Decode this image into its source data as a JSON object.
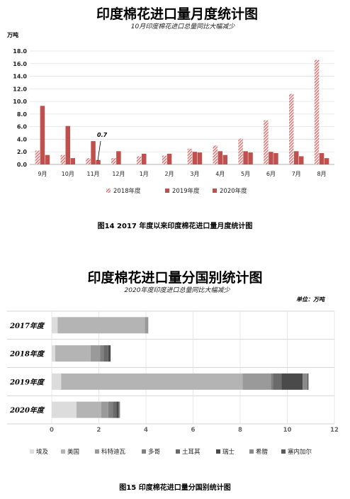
{
  "chart1": {
    "title": "印度棉花进口量月度统计图",
    "subtitle": "10月印度棉花进口总量同比大幅减少",
    "unit": "万吨",
    "caption": "图14    2017 年度以来印度棉花进口量月度统计图",
    "annotation": "0.7",
    "yticks": [
      "0.0",
      "2.0",
      "4.0",
      "6.0",
      "8.0",
      "10.0",
      "12.0",
      "14.0",
      "16.0",
      "18.0"
    ]
  },
  "chart2": {
    "title": "印度棉花进口量分国别统计图",
    "subtitle": "2020年度印度进口总量同比大幅减少",
    "unit": "单位：万吨",
    "caption": "图15    印度棉花进口量分国别统计图",
    "xticks": [
      "0",
      "2",
      "4",
      "6",
      "8",
      "10",
      "12"
    ]
  },
  "chart_data": [
    {
      "type": "bar",
      "title": "印度棉花进口量月度统计图",
      "subtitle": "10月印度棉花进口总量同比大幅减少",
      "ylabel": "万吨",
      "ylim": [
        0,
        18
      ],
      "categories": [
        "9月",
        "10月",
        "11月",
        "12月",
        "1月",
        "2月",
        "3月",
        "4月",
        "5月",
        "6月",
        "7月",
        "8月"
      ],
      "series": [
        {
          "name": "2018年度",
          "values": [
            2.2,
            1.5,
            1.0,
            1.0,
            1.3,
            1.4,
            2.5,
            3.0,
            4.1,
            7.0,
            11.2,
            16.6
          ]
        },
        {
          "name": "2019年度",
          "values": [
            9.3,
            6.1,
            3.7,
            2.1,
            1.7,
            1.7,
            2.0,
            2.1,
            2.1,
            2.0,
            2.1,
            1.8
          ]
        },
        {
          "name": "2020年度",
          "values": [
            1.5,
            1.0,
            0.7,
            null,
            null,
            null,
            1.9,
            1.5,
            1.9,
            1.8,
            1.3,
            1.0
          ]
        }
      ],
      "legend": "bottom",
      "grid": "horizontal"
    },
    {
      "type": "bar",
      "orientation": "horizontal-stacked",
      "title": "印度棉花进口量分国别统计图",
      "subtitle": "2020年度印度进口总量同比大幅减少",
      "unit": "单位：万吨",
      "xlim": [
        0,
        12
      ],
      "categories": [
        "2017年度",
        "2018年度",
        "2019年度",
        "2020年度"
      ],
      "series": [
        {
          "name": "埃及",
          "values": [
            0.25,
            0.15,
            0.4,
            1.05
          ]
        },
        {
          "name": "美国",
          "values": [
            3.7,
            1.5,
            7.7,
            1.05
          ]
        },
        {
          "name": "科特迪瓦",
          "values": [
            0.15,
            0.4,
            1.2,
            0.3
          ]
        },
        {
          "name": "多哥",
          "values": [
            0.0,
            0.15,
            0.1,
            0.2
          ]
        },
        {
          "name": "土耳其",
          "values": [
            0.0,
            0.2,
            0.35,
            0.15
          ]
        },
        {
          "name": "瑞士",
          "values": [
            0.0,
            0.1,
            0.9,
            0.1
          ]
        },
        {
          "name": "希腊",
          "values": [
            0.0,
            0.0,
            0.2,
            0.05
          ]
        },
        {
          "name": "塞内加尔",
          "values": [
            0.0,
            0.0,
            0.05,
            0.0
          ]
        }
      ],
      "colors": [
        "#dcdcdc",
        "#b4b4b4",
        "#9a9a9a",
        "#808080",
        "#6a6a6a",
        "#4a4a4a",
        "#8a8a8a",
        "#5a5a5a"
      ],
      "legend": "bottom",
      "grid": "vertical"
    }
  ]
}
